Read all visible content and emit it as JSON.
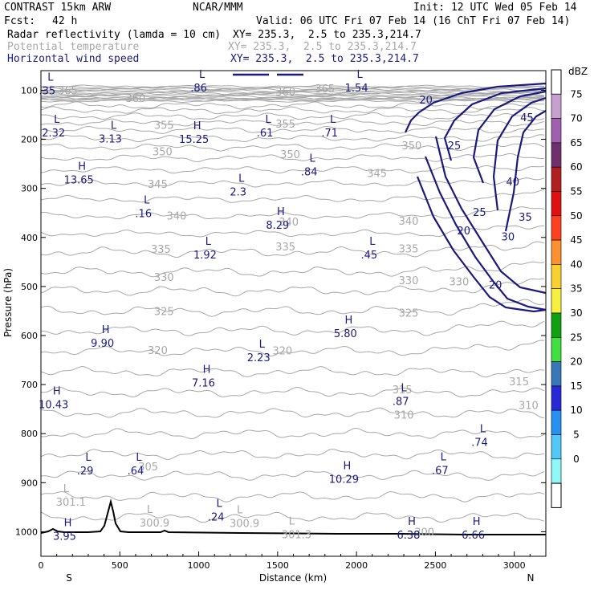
{
  "header": {
    "model": "CONTRAST 15km ARW",
    "center": "NCAR/MMM",
    "init": "Init: 12 UTC Wed 05 Feb 14",
    "fcst_label": "Fcst:",
    "fcst_value": "42 h",
    "valid": "Valid: 06 UTC Fri 07 Feb 14 (16 ChT Fri 07 Feb 14)",
    "fields": [
      {
        "name": "Radar reflectivity (lamda = 10 cm)",
        "xy": "XY= 235.3,  2.5 to 235.3,214.7",
        "color": "#000000"
      },
      {
        "name": "Potential temperature",
        "xy": "XY= 235.3,  2.5 to 235.3,214.7",
        "color": "#a8a8a8"
      },
      {
        "name": "Horizontal wind speed",
        "xy": "XY= 235.3,  2.5 to 235.3,214.7",
        "color": "#1a1a7e"
      }
    ]
  },
  "chart_data": {
    "type": "cross-section",
    "xlabel": "Distance (km)",
    "ylabel": "Pressure (hPa)",
    "xlim": [
      0,
      3200
    ],
    "ylim": [
      1050,
      60
    ],
    "x_ticks": [
      0,
      500,
      1000,
      1500,
      2000,
      2500,
      3000
    ],
    "y_ticks": [
      100,
      200,
      300,
      400,
      500,
      600,
      700,
      800,
      900,
      1000
    ],
    "x_end_labels": {
      "left": "S",
      "right": "N"
    },
    "colorbar": {
      "unit": "dBZ",
      "levels": [
        {
          "label": "75",
          "color": "#c8a0d0"
        },
        {
          "label": "70",
          "color": "#a060b0"
        },
        {
          "label": "65",
          "color": "#703070"
        },
        {
          "label": "60",
          "color": "#b02020"
        },
        {
          "label": "55",
          "color": "#e01010"
        },
        {
          "label": "50",
          "color": "#ff4020"
        },
        {
          "label": "45",
          "color": "#ff9030"
        },
        {
          "label": "40",
          "color": "#f8d030"
        },
        {
          "label": "35",
          "color": "#f8f040"
        },
        {
          "label": "30",
          "color": "#10a010"
        },
        {
          "label": "25",
          "color": "#40e040"
        },
        {
          "label": "20",
          "color": "#3878b8"
        },
        {
          "label": "15",
          "color": "#2828d8"
        },
        {
          "label": "10",
          "color": "#2890f0"
        },
        {
          "label": "5",
          "color": "#50c8f8"
        },
        {
          "label": "0",
          "color": "#90f8f8"
        }
      ]
    },
    "theta_labels": [
      {
        "text": "365",
        "x": 170,
        "p": 102
      },
      {
        "text": "360",
        "x": 600,
        "p": 117
      },
      {
        "text": "360",
        "x": 1550,
        "p": 104
      },
      {
        "text": "365",
        "x": 1800,
        "p": 98
      },
      {
        "text": "355",
        "x": 780,
        "p": 172
      },
      {
        "text": "355",
        "x": 1550,
        "p": 170
      },
      {
        "text": "350",
        "x": 770,
        "p": 226
      },
      {
        "text": "350",
        "x": 1580,
        "p": 232
      },
      {
        "text": "350",
        "x": 2350,
        "p": 214
      },
      {
        "text": "345",
        "x": 740,
        "p": 292
      },
      {
        "text": "345",
        "x": 2130,
        "p": 270
      },
      {
        "text": "340",
        "x": 860,
        "p": 357
      },
      {
        "text": "340",
        "x": 1570,
        "p": 369
      },
      {
        "text": "340",
        "x": 2330,
        "p": 368
      },
      {
        "text": "335",
        "x": 760,
        "p": 425
      },
      {
        "text": "335",
        "x": 1550,
        "p": 420
      },
      {
        "text": "335",
        "x": 2330,
        "p": 424
      },
      {
        "text": "330",
        "x": 780,
        "p": 482
      },
      {
        "text": "330",
        "x": 2330,
        "p": 489
      },
      {
        "text": "330",
        "x": 2650,
        "p": 491
      },
      {
        "text": "325",
        "x": 780,
        "p": 552
      },
      {
        "text": "325",
        "x": 2330,
        "p": 555
      },
      {
        "text": "320",
        "x": 740,
        "p": 631
      },
      {
        "text": "320",
        "x": 1530,
        "p": 632
      },
      {
        "text": "315",
        "x": 2290,
        "p": 711
      },
      {
        "text": "315",
        "x": 3030,
        "p": 695
      },
      {
        "text": "310",
        "x": 3090,
        "p": 743
      },
      {
        "text": "310",
        "x": 2300,
        "p": 763
      },
      {
        "text": "305",
        "x": 680,
        "p": 868
      },
      {
        "text": "300",
        "x": 2430,
        "p": 1002
      }
    ],
    "wind_labels": [
      {
        "text": "20",
        "x": 2440,
        "p": 119
      },
      {
        "text": "25",
        "x": 2620,
        "p": 212
      },
      {
        "text": "40",
        "x": 2990,
        "p": 286
      },
      {
        "text": "25",
        "x": 2780,
        "p": 348
      },
      {
        "text": "35",
        "x": 3070,
        "p": 358
      },
      {
        "text": "20",
        "x": 2680,
        "p": 386
      },
      {
        "text": "30",
        "x": 2960,
        "p": 398
      },
      {
        "text": "20",
        "x": 2880,
        "p": 496
      },
      {
        "text": "45",
        "x": 3080,
        "p": 155
      }
    ],
    "extrema_wind": [
      {
        "hl": "L",
        "val": ".35",
        "x": 40,
        "p": 105
      },
      {
        "hl": "L",
        "val": ".86",
        "x": 1000,
        "p": 99
      },
      {
        "hl": "L",
        "val": "1.54",
        "x": 2000,
        "p": 99
      },
      {
        "hl": "L",
        "val": "2.32",
        "x": 80,
        "p": 191
      },
      {
        "hl": "L",
        "val": "3.13",
        "x": 440,
        "p": 203
      },
      {
        "hl": "H",
        "val": "15.25",
        "x": 970,
        "p": 204
      },
      {
        "hl": "L",
        "val": ".61",
        "x": 1420,
        "p": 191
      },
      {
        "hl": "L",
        "val": ".71",
        "x": 1830,
        "p": 191
      },
      {
        "hl": "L",
        "val": ".84",
        "x": 1700,
        "p": 270
      },
      {
        "hl": "H",
        "val": "13.65",
        "x": 240,
        "p": 287
      },
      {
        "hl": "L",
        "val": "2.3",
        "x": 1250,
        "p": 311
      },
      {
        "hl": "L",
        "val": ".16",
        "x": 650,
        "p": 355
      },
      {
        "hl": "H",
        "val": "8.29",
        "x": 1500,
        "p": 379
      },
      {
        "hl": "L",
        "val": "1.92",
        "x": 1040,
        "p": 440
      },
      {
        "hl": "L",
        "val": ".45",
        "x": 2080,
        "p": 440
      },
      {
        "hl": "H",
        "val": "9.90",
        "x": 390,
        "p": 620
      },
      {
        "hl": "H",
        "val": "5.80",
        "x": 1930,
        "p": 600
      },
      {
        "hl": "L",
        "val": "2.23",
        "x": 1380,
        "p": 649
      },
      {
        "hl": "H",
        "val": "7.16",
        "x": 1030,
        "p": 701
      },
      {
        "hl": "H",
        "val": "10.43",
        "x": 80,
        "p": 745
      },
      {
        "hl": "L",
        "val": ".87",
        "x": 2280,
        "p": 738
      },
      {
        "hl": "L",
        "val": ".74",
        "x": 2780,
        "p": 822
      },
      {
        "hl": "L",
        "val": ".29",
        "x": 280,
        "p": 880
      },
      {
        "hl": "L",
        "val": ".64",
        "x": 600,
        "p": 880
      },
      {
        "hl": "L",
        "val": ".67",
        "x": 2530,
        "p": 879
      },
      {
        "hl": "H",
        "val": "10.29",
        "x": 1920,
        "p": 897
      },
      {
        "hl": "L",
        "val": ".24",
        "x": 1110,
        "p": 974
      },
      {
        "hl": "H",
        "val": "3.95",
        "x": 150,
        "p": 1013
      },
      {
        "hl": "H",
        "val": "6.38",
        "x": 2330,
        "p": 1011
      },
      {
        "hl": "H",
        "val": "6.66",
        "x": 2740,
        "p": 1011
      }
    ],
    "extrema_theta": [
      {
        "hl": "L",
        "val": "301.1",
        "x": 190,
        "p": 944
      },
      {
        "hl": "L",
        "val": "300.9",
        "x": 720,
        "p": 986
      },
      {
        "hl": "L",
        "val": "300.9",
        "x": 1290,
        "p": 987
      },
      {
        "hl": "L",
        "val": "301.3",
        "x": 1620,
        "p": 1010
      }
    ]
  }
}
